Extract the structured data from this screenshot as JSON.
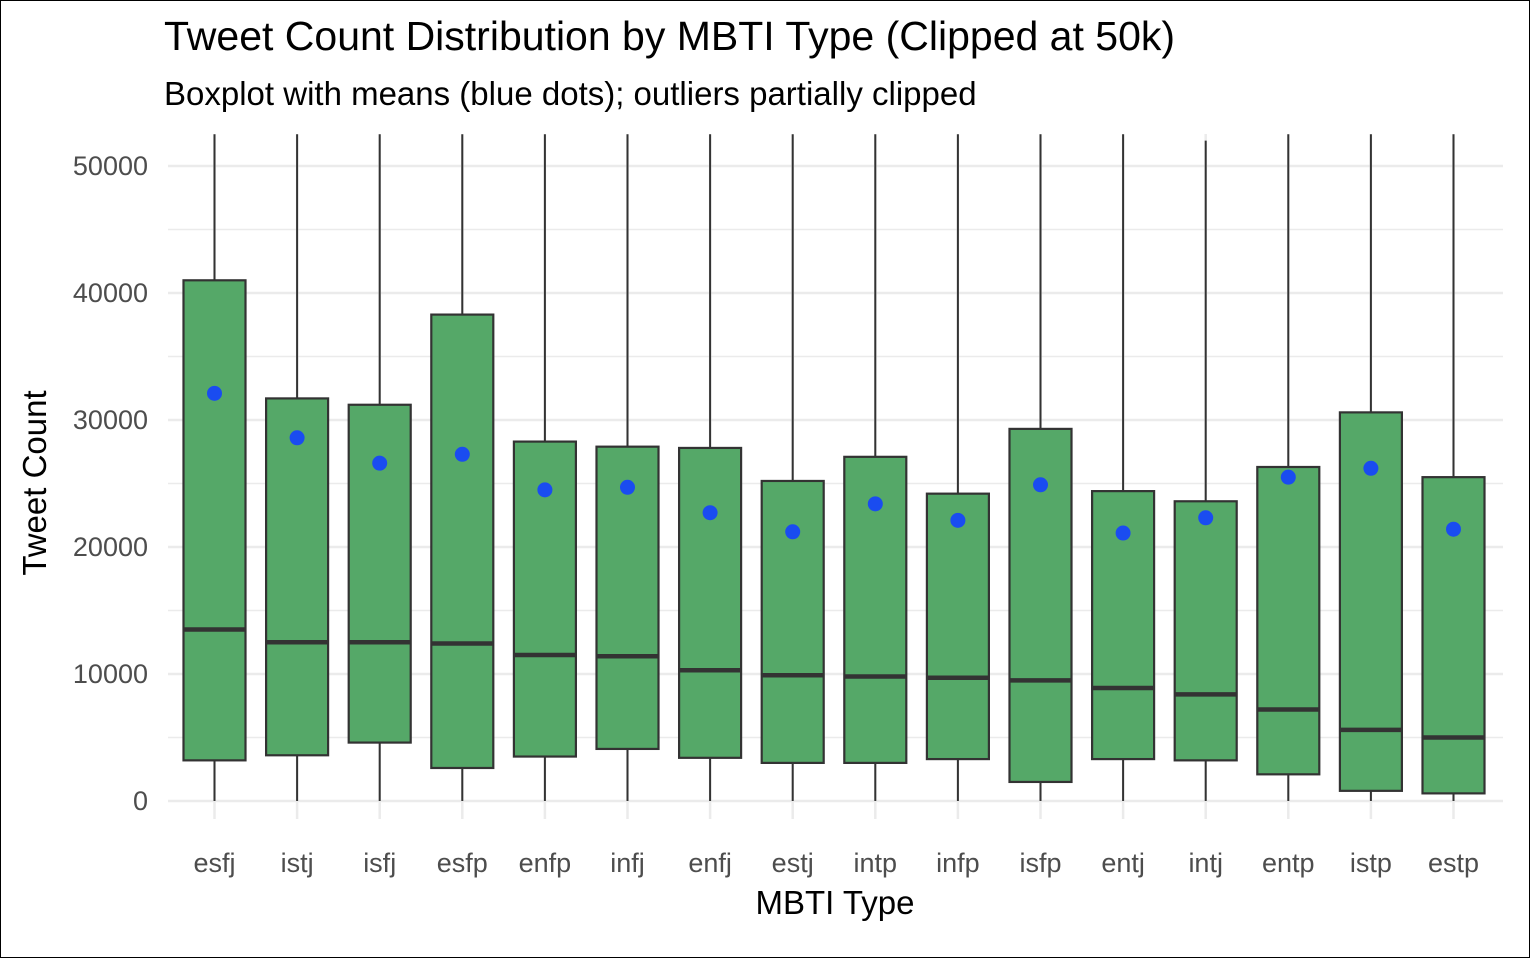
{
  "chart_data": {
    "type": "boxplot",
    "title": "Tweet Count Distribution by MBTI Type (Clipped at 50k)",
    "subtitle": "Boxplot with means (blue dots); outliers partially clipped",
    "xlabel": "MBTI Type",
    "ylabel": "Tweet Count",
    "ylim": [
      0,
      50000
    ],
    "yticks": [
      0,
      10000,
      20000,
      30000,
      40000,
      50000
    ],
    "grid": true,
    "colors": {
      "box_fill": "#55a868",
      "box_stroke": "#333333",
      "mean_dot": "#1a4cf0",
      "grid": "#ebebeb"
    },
    "categories": [
      "esfj",
      "istj",
      "isfj",
      "esfp",
      "enfp",
      "infj",
      "enfj",
      "estj",
      "intp",
      "infp",
      "isfp",
      "entj",
      "intj",
      "entp",
      "istp",
      "estp"
    ],
    "boxes": [
      {
        "category": "esfj",
        "q1": 3200,
        "median": 13500,
        "q3": 41000,
        "mean": 32100,
        "whisker_low": 0,
        "whisker_high": 52500
      },
      {
        "category": "istj",
        "q1": 3600,
        "median": 12500,
        "q3": 31700,
        "mean": 28600,
        "whisker_low": 0,
        "whisker_high": 52500
      },
      {
        "category": "isfj",
        "q1": 4600,
        "median": 12500,
        "q3": 31200,
        "mean": 26600,
        "whisker_low": 0,
        "whisker_high": 52500
      },
      {
        "category": "esfp",
        "q1": 2600,
        "median": 12400,
        "q3": 38300,
        "mean": 27300,
        "whisker_low": 0,
        "whisker_high": 52500
      },
      {
        "category": "enfp",
        "q1": 3500,
        "median": 11500,
        "q3": 28300,
        "mean": 24500,
        "whisker_low": 0,
        "whisker_high": 52500
      },
      {
        "category": "infj",
        "q1": 4100,
        "median": 11400,
        "q3": 27900,
        "mean": 24700,
        "whisker_low": 0,
        "whisker_high": 52500
      },
      {
        "category": "enfj",
        "q1": 3400,
        "median": 10300,
        "q3": 27800,
        "mean": 22700,
        "whisker_low": 0,
        "whisker_high": 52500
      },
      {
        "category": "estj",
        "q1": 3000,
        "median": 9900,
        "q3": 25200,
        "mean": 21200,
        "whisker_low": 0,
        "whisker_high": 52500
      },
      {
        "category": "intp",
        "q1": 3000,
        "median": 9800,
        "q3": 27100,
        "mean": 23400,
        "whisker_low": 0,
        "whisker_high": 52500
      },
      {
        "category": "infp",
        "q1": 3300,
        "median": 9700,
        "q3": 24200,
        "mean": 22100,
        "whisker_low": 0,
        "whisker_high": 52500
      },
      {
        "category": "isfp",
        "q1": 1500,
        "median": 9500,
        "q3": 29300,
        "mean": 24900,
        "whisker_low": 0,
        "whisker_high": 52500
      },
      {
        "category": "entj",
        "q1": 3300,
        "median": 8900,
        "q3": 24400,
        "mean": 21100,
        "whisker_low": 0,
        "whisker_high": 52500
      },
      {
        "category": "intj",
        "q1": 3200,
        "median": 8400,
        "q3": 23600,
        "mean": 22300,
        "whisker_low": 0,
        "whisker_high": 52000
      },
      {
        "category": "entp",
        "q1": 2100,
        "median": 7200,
        "q3": 26300,
        "mean": 25500,
        "whisker_low": 0,
        "whisker_high": 52500
      },
      {
        "category": "istp",
        "q1": 800,
        "median": 5600,
        "q3": 30600,
        "mean": 26200,
        "whisker_low": 0,
        "whisker_high": 52500
      },
      {
        "category": "estp",
        "q1": 600,
        "median": 5000,
        "q3": 25500,
        "mean": 21400,
        "whisker_low": 0,
        "whisker_high": 52500
      }
    ]
  }
}
